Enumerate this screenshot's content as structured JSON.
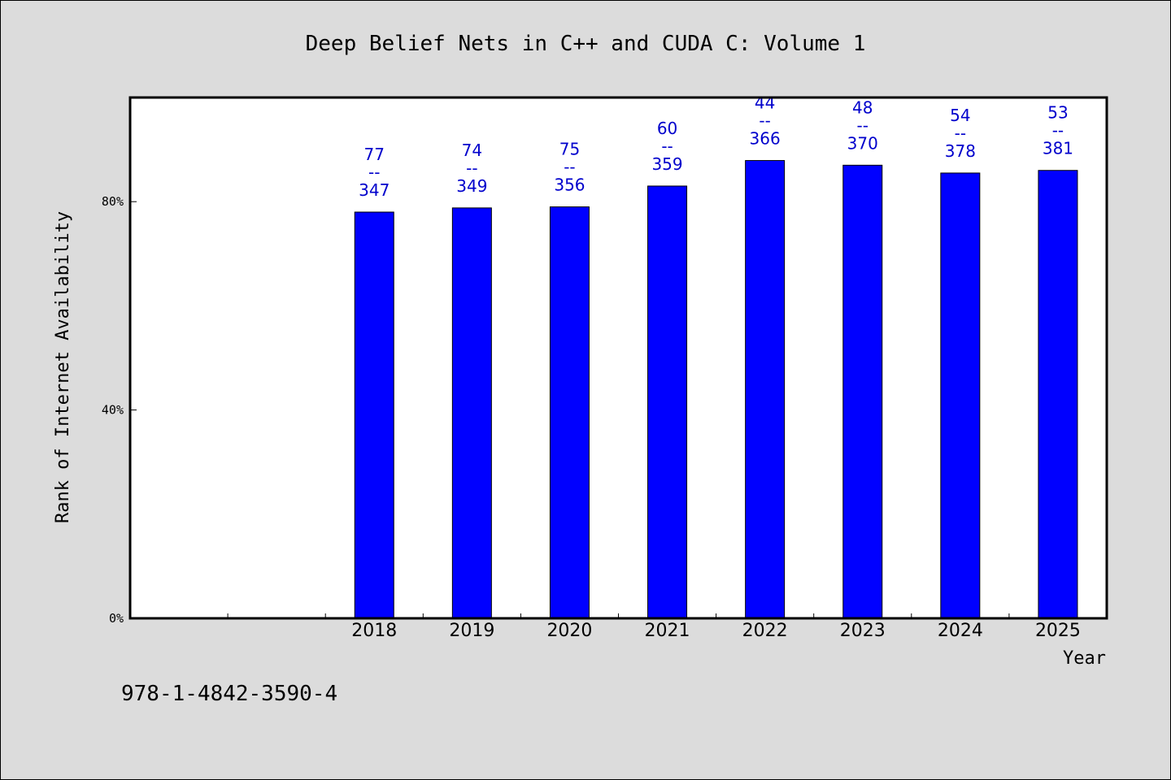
{
  "chart_data": {
    "type": "bar",
    "title": "Deep Belief Nets in C++ and CUDA C: Volume 1",
    "xlabel": "Year",
    "ylabel": "Rank of Internet Availability",
    "categories": [
      "2018",
      "2019",
      "2020",
      "2021",
      "2022",
      "2023",
      "2024",
      "2025"
    ],
    "values": [
      78,
      78.8,
      79,
      83,
      87.9,
      87,
      85.5,
      86
    ],
    "value_labels": [
      {
        "top": "77",
        "sep": "--",
        "bottom": "347"
      },
      {
        "top": "74",
        "sep": "--",
        "bottom": "349"
      },
      {
        "top": "75",
        "sep": "--",
        "bottom": "356"
      },
      {
        "top": "60",
        "sep": "--",
        "bottom": "359"
      },
      {
        "top": "44",
        "sep": "--",
        "bottom": "366"
      },
      {
        "top": "48",
        "sep": "--",
        "bottom": "370"
      },
      {
        "top": "54",
        "sep": "--",
        "bottom": "378"
      },
      {
        "top": "53",
        "sep": "--",
        "bottom": "381"
      }
    ],
    "yticks": [
      {
        "value": 0,
        "label": "0%"
      },
      {
        "value": 40,
        "label": "40%"
      },
      {
        "value": 80,
        "label": "80%"
      }
    ],
    "ylim": [
      0,
      100
    ],
    "grid": false,
    "legend": "none",
    "colors": {
      "bar": "#0000ff",
      "label": "#0000cc",
      "background": "#dcdcdc",
      "plot_background": "#ffffff"
    }
  },
  "footer": {
    "isbn": "978-1-4842-3590-4"
  }
}
